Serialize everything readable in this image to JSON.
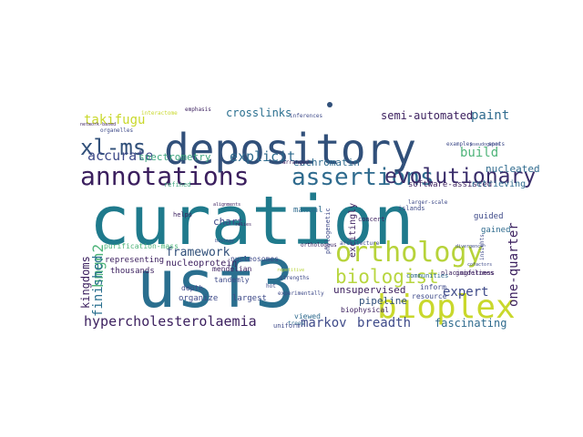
{
  "words": [
    {
      "text": "curation",
      "color": "#1f7a8c"
    },
    {
      "text": "usf3",
      "color": "#2a6f8f"
    },
    {
      "text": "depository",
      "color": "#31507a"
    },
    {
      "text": "annotations",
      "color": "#3b1f5e"
    },
    {
      "text": "orthology",
      "color": "#b7d33a"
    },
    {
      "text": "bioplex",
      "color": "#c9d82c"
    },
    {
      "text": "assertions",
      "color": "#2f6b8e"
    },
    {
      "text": "evolutionary",
      "color": "#3a2d6a"
    },
    {
      "text": "xl-ms",
      "color": "#31507a"
    },
    {
      "text": "biologist",
      "color": "#b8d640"
    },
    {
      "text": "hmgn2",
      "color": "#4fb47a"
    },
    {
      "text": "finished",
      "color": "#2a6f8f"
    },
    {
      "text": "hypercholesterolaemia",
      "color": "#3b1f5e"
    },
    {
      "text": "markov",
      "color": "#3e4a89"
    },
    {
      "text": "breadth",
      "color": "#3e4a89"
    },
    {
      "text": "fascinating",
      "color": "#2f6b8e"
    },
    {
      "text": "expert",
      "color": "#3e4a89"
    },
    {
      "text": "kingdoms",
      "color": "#3b1f5e"
    },
    {
      "text": "framework",
      "color": "#31507a"
    },
    {
      "text": "explicit",
      "color": "#2f6b8e"
    },
    {
      "text": "accurate",
      "color": "#3e4a89"
    },
    {
      "text": "takifugu",
      "color": "#c9d82c"
    },
    {
      "text": "spectrometry",
      "color": "#3fa57f"
    },
    {
      "text": "crosslinks",
      "color": "#2a6f8f"
    },
    {
      "text": "semi-automated",
      "color": "#3b1f5e"
    },
    {
      "text": "paint",
      "color": "#2f6b8e"
    },
    {
      "text": "build",
      "color": "#4fb47a"
    },
    {
      "text": "one-quarter",
      "color": "#3b1f5e"
    },
    {
      "text": "euchromatin",
      "color": "#2f6b8e"
    },
    {
      "text": "chart",
      "color": "#3e4a89"
    },
    {
      "text": "nucleated",
      "color": "#2f6b8e"
    },
    {
      "text": "pipeline",
      "color": "#31507a"
    },
    {
      "text": "unsupervised",
      "color": "#3b1f5e"
    },
    {
      "text": "software-assisted",
      "color": "#3b1f5e"
    },
    {
      "text": "excitingly",
      "color": "#3b1f5e"
    },
    {
      "text": "nucleoprotein",
      "color": "#3b1f5e"
    },
    {
      "text": "retrieving",
      "color": "#2f6b8e"
    },
    {
      "text": "guided",
      "color": "#3e4a89"
    },
    {
      "text": "gained",
      "color": "#2f6b8e"
    },
    {
      "text": "representing",
      "color": "#3b1f5e"
    },
    {
      "text": "thousands",
      "color": "#3b1f5e"
    },
    {
      "text": "depth",
      "color": "#3e4a89"
    },
    {
      "text": "largest",
      "color": "#3e4a89"
    },
    {
      "text": "nucleosomes",
      "color": "#3e4a89"
    },
    {
      "text": "mendelian",
      "color": "#3b1f5e"
    },
    {
      "text": "tandemly",
      "color": "#3e4a89"
    },
    {
      "text": "organize",
      "color": "#3e4a89"
    },
    {
      "text": "biophysical",
      "color": "#3b1f5e"
    },
    {
      "text": "viewed",
      "color": "#2f6b8e"
    },
    {
      "text": "trees",
      "color": "#2f6b8e"
    },
    {
      "text": "uniform",
      "color": "#3e4a89"
    },
    {
      "text": "inform",
      "color": "#3e4a89"
    },
    {
      "text": "resource",
      "color": "#3e4a89"
    },
    {
      "text": "placingfitness",
      "color": "#3b1f5e"
    },
    {
      "text": "guidelines",
      "color": "#3b1f5e"
    },
    {
      "text": "communities",
      "color": "#2f6b8e"
    },
    {
      "text": "manual",
      "color": "#2f6b8e"
    },
    {
      "text": "refined",
      "color": "#3fa57f"
    },
    {
      "text": "purification-mass",
      "color": "#4fb47a"
    },
    {
      "text": "organelles",
      "color": "#3e4a89"
    },
    {
      "text": "network-based",
      "color": "#3b1f5e"
    },
    {
      "text": "emphasis",
      "color": "#3b1f5e"
    },
    {
      "text": "inferences",
      "color": "#3e4a89"
    },
    {
      "text": "examples",
      "color": "#3e4a89"
    },
    {
      "text": "experimentally",
      "color": "#3e4a89"
    },
    {
      "text": "strengths",
      "color": "#3e4a89"
    },
    {
      "text": "orthologous",
      "color": "#3b1f5e"
    },
    {
      "text": "phylogenetic",
      "color": "#3e4a89"
    },
    {
      "text": "islands",
      "color": "#3e4a89"
    },
    {
      "text": "concert",
      "color": "#3b1f5e"
    },
    {
      "text": "hot",
      "color": "#3e4a89"
    },
    {
      "text": "relies",
      "color": "#3b1f5e"
    },
    {
      "text": "helps",
      "color": "#3b1f5e"
    },
    {
      "text": "alignments",
      "color": "#3b1f5e"
    },
    {
      "text": "interactome",
      "color": "#c9d82c"
    },
    {
      "text": "arranged",
      "color": "#3b1f5e"
    },
    {
      "text": "spots",
      "color": "#3e4a89"
    },
    {
      "text": "pseudogenes",
      "color": "#3e4a89"
    },
    {
      "text": "larger-scale",
      "color": "#3e4a89"
    },
    {
      "text": "architecture",
      "color": "#3e4a89"
    },
    {
      "text": "divergence",
      "color": "#3e4a89"
    },
    {
      "text": "insights",
      "color": "#3e4a89"
    },
    {
      "text": "repetitive",
      "color": "#b7d33a"
    },
    {
      "text": "biology",
      "color": "#3e4a89"
    },
    {
      "text": "cofactors",
      "color": "#3e4a89"
    }
  ]
}
